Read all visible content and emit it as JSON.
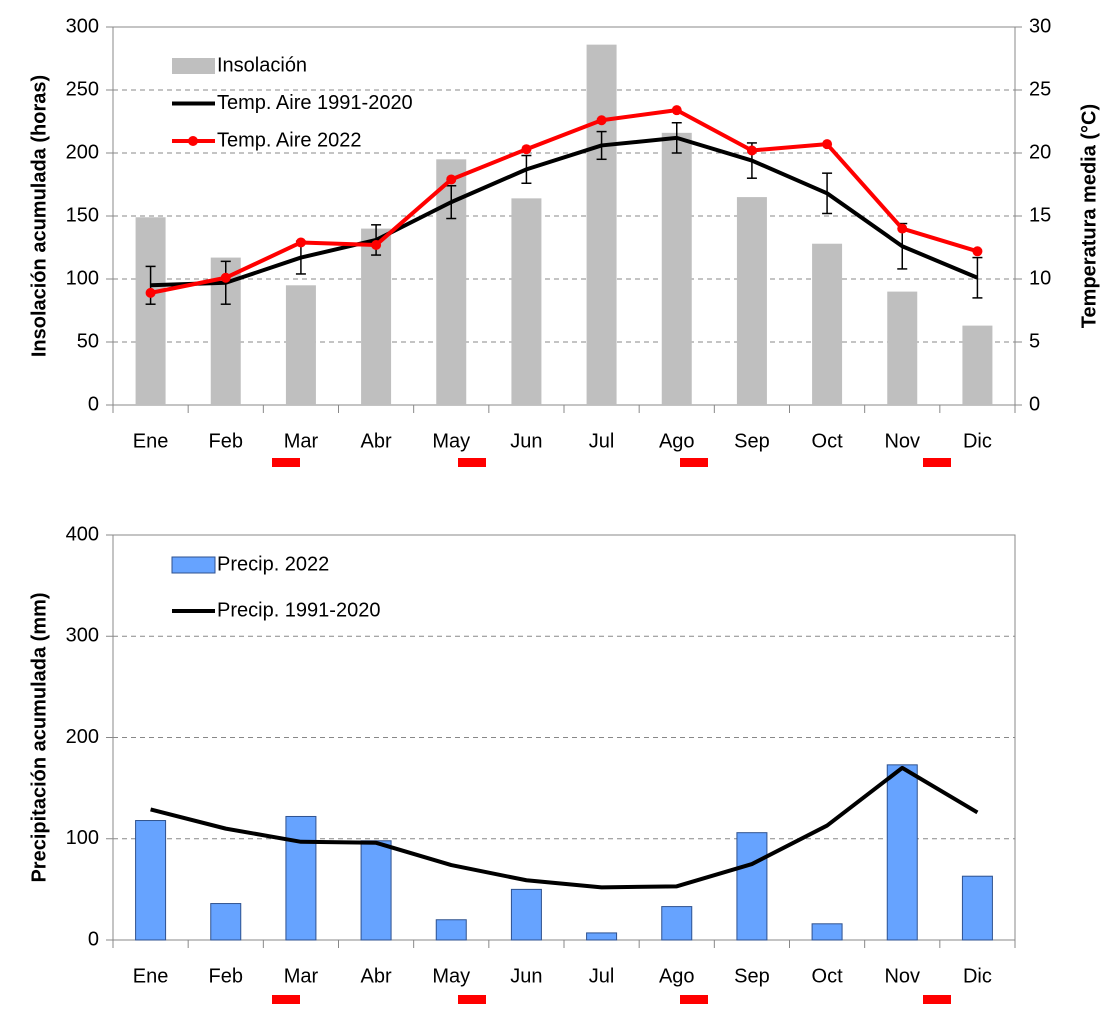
{
  "chart_data": [
    {
      "type": "combo",
      "ylabel": "Insolación  acumulada (horas)",
      "y2label": "Temperatura media (°C)",
      "categories": [
        "Ene",
        "Feb",
        "Mar",
        "Abr",
        "May",
        "Jun",
        "Jul",
        "Ago",
        "Sep",
        "Oct",
        "Nov",
        "Dic"
      ],
      "ylim": [
        0,
        300
      ],
      "yticks": [
        0,
        50,
        100,
        150,
        200,
        250,
        300
      ],
      "y2lim": [
        0,
        30
      ],
      "y2ticks": [
        0,
        5,
        10,
        15,
        20,
        25,
        30
      ],
      "grid": true,
      "legend": "upper left",
      "series": [
        {
          "name": "Insolación",
          "type": "bar",
          "color": "#bfbfbf",
          "values": [
            149,
            117,
            95,
            140,
            195,
            164,
            286,
            216,
            165,
            128,
            90,
            63
          ]
        },
        {
          "name": "Temp. Aire 1991-2020",
          "type": "line",
          "axis": "y2",
          "color": "#000000",
          "values": [
            9.5,
            9.7,
            11.7,
            13.1,
            16.1,
            18.7,
            20.6,
            21.2,
            19.4,
            16.8,
            12.6,
            10.1
          ],
          "errors": [
            1.5,
            1.7,
            1.3,
            1.2,
            1.3,
            1.1,
            1.1,
            1.2,
            1.4,
            1.6,
            1.8,
            1.6
          ]
        },
        {
          "name": "Temp. Aire 2022",
          "type": "line",
          "axis": "y2",
          "color": "#ff0000",
          "markers": true,
          "values": [
            8.9,
            10.1,
            12.9,
            12.7,
            17.9,
            20.3,
            22.6,
            23.4,
            20.2,
            20.7,
            14.0,
            12.2
          ]
        }
      ]
    },
    {
      "type": "combo",
      "ylabel": "Precipitación acumulada (mm)",
      "categories": [
        "Ene",
        "Feb",
        "Mar",
        "Abr",
        "May",
        "Jun",
        "Jul",
        "Ago",
        "Sep",
        "Oct",
        "Nov",
        "Dic"
      ],
      "ylim": [
        0,
        400
      ],
      "yticks": [
        0,
        100,
        200,
        300,
        400
      ],
      "grid": true,
      "legend": "upper left",
      "series": [
        {
          "name": "Precip. 2022",
          "type": "bar",
          "color": "#66a3ff",
          "edgecolor": "#2f528f",
          "values": [
            118,
            36,
            122,
            98,
            20,
            50,
            7,
            33,
            106,
            16,
            173,
            63
          ]
        },
        {
          "name": "Precip. 1991-2020",
          "type": "line",
          "color": "#000000",
          "values": [
            129,
            110,
            97,
            96,
            74,
            59,
            52,
            53,
            75,
            113,
            170,
            126
          ]
        }
      ]
    }
  ]
}
